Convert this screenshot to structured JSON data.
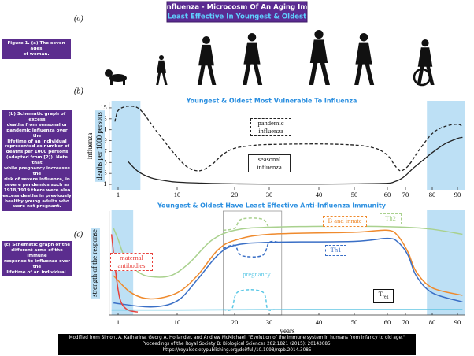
{
  "header": {
    "title": "Immunity To Influenza - Microcosm Of An Aging Immune System",
    "subtitle": "Least Effective In Youngest & Oldest"
  },
  "panel_labels": [
    "(a)",
    "(b)",
    "(c)"
  ],
  "captions": [
    [
      "Figure 1. (a) The seven ages",
      "of woman."
    ],
    [
      "(b) Schematic graph of excess",
      "deaths from seasonal or",
      "pandemic influenza over the",
      "lifetime of an individual",
      "represented as number of",
      "deaths per 1000 persons",
      "(adapted from [2]). Note that",
      "while pregnancy increases the",
      "risk of severe influenza, in",
      "severe pandemics such as",
      "1918/1919 there were also",
      "excess deaths in previously",
      "healthy young adults who",
      "were not pregnant."
    ],
    [
      "(c) Schematic graph of the",
      "different arms of the immune",
      "response to influenza over the",
      "lifetime of an individual."
    ]
  ],
  "citation": [
    "Modified from Simon, A. Katharina, Georg A. Hollander, and Andrew McMichael. \"Evolution of the immune system in humans from infancy to old age.\"",
    "Proceedings of the Royal Society B: Biological Sciences 282.1821 (2015): 20143085.",
    "https://royalsocietypublishing.org/doi/full/10.1098/rspb.2014.3085"
  ],
  "chart_data": [
    {
      "type": "line",
      "title": "Youngest & Oldest Most Vulnerable To Influenza",
      "y_label": [
        "influenza",
        "deaths per 1000 persons"
      ],
      "xlim": [
        0,
        93
      ],
      "xticks": [
        1,
        10,
        20,
        30,
        40,
        50,
        60,
        70,
        80,
        90
      ],
      "ylim": [
        0,
        16
      ],
      "yticks": [
        1,
        3,
        5,
        7,
        9,
        11,
        13,
        15
      ],
      "highlights": [
        [
          0,
          4.4
        ],
        [
          78,
          93
        ]
      ],
      "series": [
        {
          "name": "pandemic influenza",
          "color": "#222222",
          "dash": true,
          "x": [
            0.5,
            1,
            2,
            3,
            4,
            5,
            7,
            10,
            12,
            14,
            16,
            18,
            20,
            25,
            30,
            40,
            50,
            55,
            58,
            61,
            64,
            67,
            70,
            72,
            75,
            80,
            85,
            90,
            92
          ],
          "values": [
            12.5,
            14.5,
            15.2,
            15.3,
            15.0,
            13.8,
            10.5,
            6.0,
            4.0,
            3.5,
            4.6,
            6.5,
            7.6,
            8.1,
            8.3,
            8.4,
            8.2,
            7.8,
            7.2,
            6.0,
            4.5,
            3.5,
            3.9,
            5.0,
            7.2,
            10.3,
            11.6,
            12.0,
            11.6
          ]
        },
        {
          "name": "seasonal influenza",
          "color": "#222222",
          "dash": false,
          "x": [
            2.5,
            4,
            6,
            8,
            10,
            15,
            20,
            30,
            40,
            50,
            60,
            64,
            67,
            70,
            73,
            76,
            80,
            85,
            90,
            92
          ],
          "values": [
            5.2,
            3.4,
            2.2,
            1.7,
            1.4,
            1.2,
            1.1,
            1.05,
            1.05,
            1.1,
            1.2,
            1.5,
            1.9,
            2.6,
            4.0,
            5.2,
            6.8,
            8.4,
            9.4,
            9.6
          ]
        }
      ]
    },
    {
      "type": "line",
      "title": "Youngest & Oldest Have Least Effective Anti-Influenza Immunity",
      "y_label": [
        "strength of the response"
      ],
      "x_label": "years",
      "xlim": [
        0,
        93
      ],
      "xticks": [
        1,
        10,
        20,
        30,
        40,
        50,
        60,
        70,
        80,
        90
      ],
      "ylim": [
        0,
        10.3
      ],
      "highlights": [
        [
          0,
          3.3
        ],
        [
          78,
          93
        ]
      ],
      "window": [
        18,
        32.5
      ],
      "series": [
        {
          "name": "Th2",
          "color": "#a9d18e",
          "dash": false,
          "x": [
            0.3,
            1,
            2,
            4,
            6,
            9,
            12,
            16,
            20,
            30,
            50,
            70,
            80,
            92
          ],
          "values": [
            8.6,
            7.5,
            5.8,
            4.3,
            3.8,
            3.9,
            5.1,
            7.4,
            8.4,
            8.7,
            8.8,
            8.7,
            8.5,
            8.0
          ]
        },
        {
          "name": "B and innate",
          "color": "#ef8a2d",
          "dash": false,
          "x": [
            0.3,
            3,
            6,
            10,
            13.5,
            17,
            20,
            30,
            50,
            60,
            66,
            71,
            74,
            80,
            92
          ],
          "values": [
            3.9,
            2.2,
            1.6,
            2.2,
            3.9,
            6.4,
            7.4,
            8.0,
            8.2,
            8.4,
            7.8,
            6.2,
            4.3,
            2.7,
            1.95
          ]
        },
        {
          "name": "Th1",
          "color": "#3a6fc6",
          "dash": false,
          "x": [
            0.3,
            6,
            10,
            13.5,
            17,
            20,
            30,
            50,
            60,
            66,
            71,
            74,
            80,
            92
          ],
          "values": [
            1.2,
            0.8,
            1.4,
            3.5,
            5.9,
            6.9,
            7.2,
            7.3,
            7.6,
            7.2,
            5.9,
            3.9,
            2.2,
            1.3
          ]
        },
        {
          "name": "maternal antibodies",
          "color": "#e8413c",
          "dash": false,
          "x": [
            0,
            0.5,
            1,
            1.5,
            2.5,
            4
          ],
          "values": [
            8.0,
            5.0,
            2.5,
            1.2,
            0.5,
            0.3
          ]
        },
        {
          "name": "pregnancy",
          "color": "#5bc8e6",
          "dash": true,
          "x": [
            18,
            19.5,
            21,
            28,
            29.5,
            31
          ],
          "values": [
            0.55,
            0.6,
            2.3,
            2.3,
            0.6,
            0.55
          ]
        },
        {
          "name": "T",
          "name_sub": "reg",
          "color": "#62c5e3",
          "dash": false,
          "x": [
            0,
            10,
            40,
            70,
            92
          ],
          "values": [
            0.5,
            0.5,
            0.55,
            0.55,
            0.55
          ]
        },
        {
          "color": "#a9d18e",
          "dash": true,
          "x": [
            18,
            20,
            22,
            28,
            30,
            32
          ],
          "values": [
            8.4,
            8.6,
            9.5,
            9.5,
            8.7,
            8.7
          ]
        },
        {
          "color": "#3a6fc6",
          "dash": true,
          "x": [
            18,
            20,
            22,
            28,
            30,
            32
          ],
          "values": [
            6.6,
            6.9,
            5.9,
            5.9,
            7.2,
            7.2
          ]
        }
      ]
    }
  ]
}
